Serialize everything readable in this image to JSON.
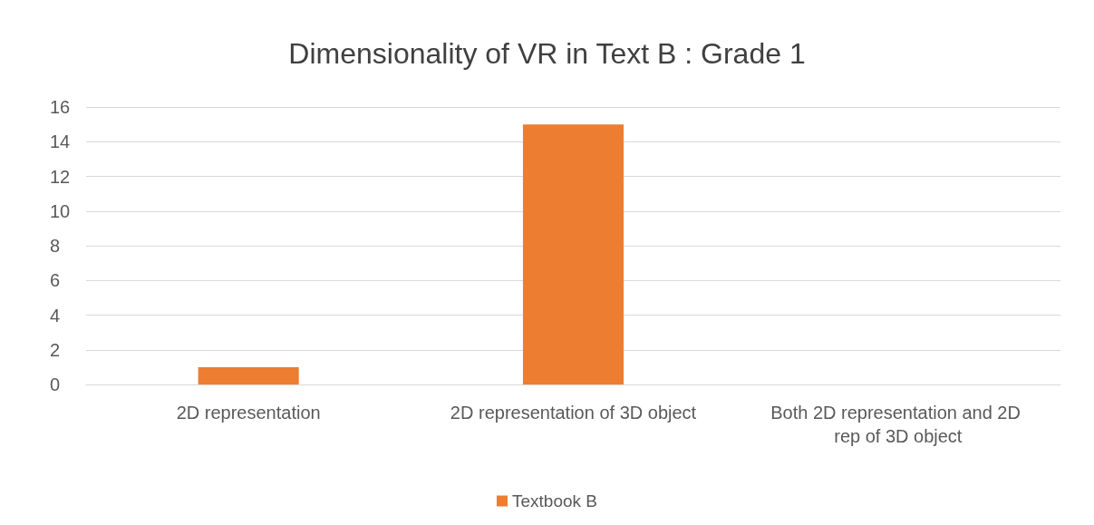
{
  "chart_data": {
    "type": "bar",
    "title": "Dimensionality of VR in Text B : Grade 1",
    "categories": [
      "2D representation",
      "2D representation of 3D object",
      "Both 2D representation and 2D rep of 3D object"
    ],
    "series": [
      {
        "name": "Textbook B",
        "color": "#ed7d31",
        "values": [
          1,
          15,
          0
        ]
      }
    ],
    "ylim": [
      0,
      16
    ],
    "yticks": [
      0,
      2,
      4,
      6,
      8,
      10,
      12,
      14,
      16
    ],
    "grid": "y",
    "legend": "bottom"
  }
}
